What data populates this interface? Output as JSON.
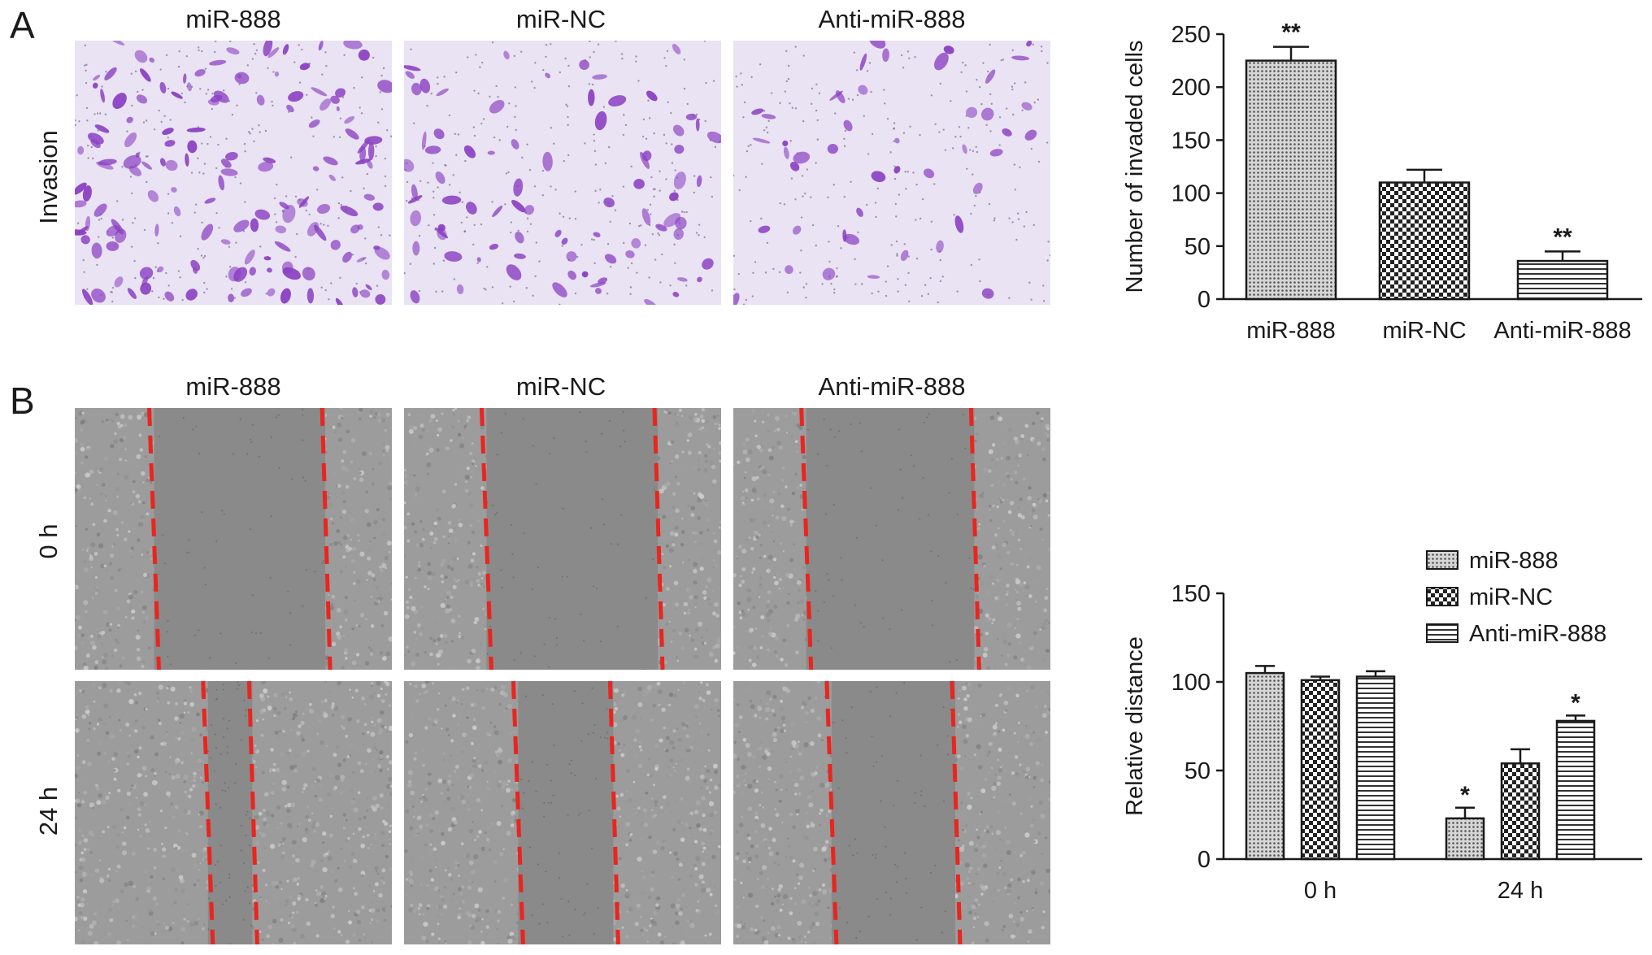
{
  "panels": {
    "A": {
      "letter": "A",
      "columns": [
        "miR-888",
        "miR-NC",
        "Anti-miR-888"
      ],
      "row_label": "Invasion"
    },
    "B": {
      "letter": "B",
      "columns": [
        "miR-888",
        "miR-NC",
        "Anti-miR-888"
      ],
      "rows": [
        "0 h",
        "24 h"
      ]
    }
  },
  "chart_data": [
    {
      "type": "bar",
      "categories": [
        "miR-888",
        "miR-NC",
        "Anti-miR-888"
      ],
      "values": [
        225,
        110,
        36
      ],
      "errors": [
        13,
        12,
        9
      ],
      "significance": [
        "**",
        "",
        "**"
      ],
      "ylabel": "Number of invaded cells",
      "xlabel": "",
      "ylim": [
        0,
        250
      ],
      "yticks": [
        0,
        50,
        100,
        150,
        200,
        250
      ],
      "patterns": [
        "dots",
        "checker",
        "hlines"
      ]
    },
    {
      "type": "bar",
      "categories": [
        "0 h",
        "24 h"
      ],
      "series": [
        {
          "name": "miR-888",
          "values": [
            105,
            23
          ],
          "errors": [
            4,
            6
          ],
          "significance": [
            "",
            "*"
          ],
          "pattern": "dots"
        },
        {
          "name": "miR-NC",
          "values": [
            101,
            54
          ],
          "errors": [
            2,
            8
          ],
          "significance": [
            "",
            ""
          ],
          "pattern": "checker"
        },
        {
          "name": "Anti-miR-888",
          "values": [
            103,
            78
          ],
          "errors": [
            3,
            3
          ],
          "significance": [
            "",
            "*"
          ],
          "pattern": "hlines"
        }
      ],
      "ylabel": "Relative distance",
      "xlabel": "",
      "ylim": [
        0,
        150
      ],
      "yticks": [
        0,
        50,
        100,
        150
      ],
      "legend_position": "top-right"
    }
  ],
  "colors": {
    "invasion_bg": "#e9e3f3",
    "invasion_cell": "#8a3fc2",
    "scratch_tissue": "#9c9c9c",
    "scratch_gap": "#8a8a8a",
    "dash_line": "#e8261f",
    "ink": "#1a1a1a"
  }
}
